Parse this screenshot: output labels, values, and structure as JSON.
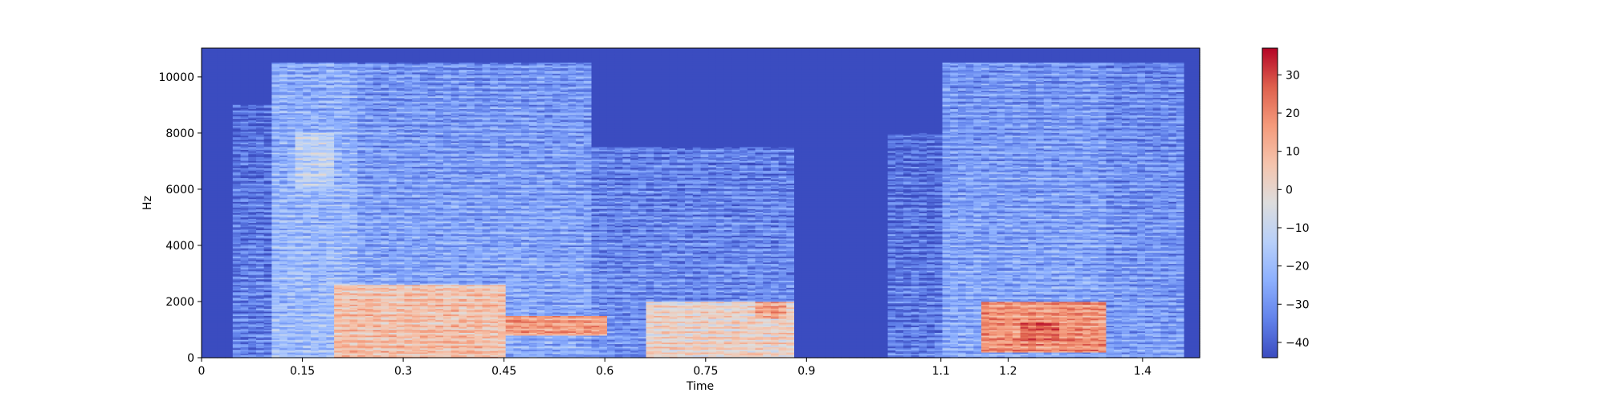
{
  "chart_data": {
    "type": "heatmap",
    "title": "",
    "xlabel": "Time",
    "ylabel": "Hz",
    "xlim": [
      0,
      1.485
    ],
    "ylim": [
      0,
      11025
    ],
    "x_ticks": [
      0,
      0.15,
      0.3,
      0.45,
      0.6,
      0.75,
      0.9,
      1.1,
      1.2,
      1.4
    ],
    "x_tick_labels": [
      "0",
      "0.15",
      "0.3",
      "0.45",
      "0.6",
      "0.75",
      "0.9",
      "1.1",
      "1.2",
      "1.4"
    ],
    "y_ticks": [
      0,
      2000,
      4000,
      6000,
      8000,
      10000
    ],
    "y_tick_labels": [
      "0",
      "2000",
      "4000",
      "6000",
      "8000",
      "10000"
    ],
    "colormap": "coolwarm",
    "colorbar": {
      "range": [
        -44,
        37
      ],
      "ticks": [
        30,
        20,
        10,
        0,
        -10,
        -20,
        -30,
        -40
      ],
      "tick_labels": [
        "30",
        "20",
        "10",
        "0",
        "−10",
        "−20",
        "−30",
        "−40"
      ]
    },
    "grid": false,
    "legend": "none",
    "n_time_frames": 128,
    "n_freq_bins": 220,
    "regions_db": [
      {
        "t": [
          0.0,
          0.045
        ],
        "f": [
          0,
          11025
        ],
        "db": -44
      },
      {
        "t": [
          0.045,
          0.11
        ],
        "f": [
          0,
          9000
        ],
        "db": -33
      },
      {
        "t": [
          0.11,
          0.23
        ],
        "f": [
          0,
          10500
        ],
        "db": -19
      },
      {
        "t": [
          0.14,
          0.2
        ],
        "f": [
          6000,
          8000
        ],
        "db": -8
      },
      {
        "t": [
          0.23,
          0.58
        ],
        "f": [
          0,
          10500
        ],
        "db": -24
      },
      {
        "t": [
          0.2,
          0.45
        ],
        "f": [
          0,
          2600
        ],
        "db": 8
      },
      {
        "t": [
          0.45,
          0.6
        ],
        "f": [
          800,
          1500
        ],
        "db": 16
      },
      {
        "t": [
          0.58,
          0.88
        ],
        "f": [
          0,
          7500
        ],
        "db": -30
      },
      {
        "t": [
          0.66,
          0.88
        ],
        "f": [
          0,
          2000
        ],
        "db": 2
      },
      {
        "t": [
          0.82,
          0.87
        ],
        "f": [
          1400,
          2000
        ],
        "db": 14
      },
      {
        "t": [
          0.92,
          1.02
        ],
        "f": [
          0,
          11025
        ],
        "db": -44
      },
      {
        "t": [
          1.02,
          1.1
        ],
        "f": [
          0,
          8000
        ],
        "db": -34
      },
      {
        "t": [
          1.1,
          1.35
        ],
        "f": [
          0,
          10500
        ],
        "db": -24
      },
      {
        "t": [
          1.16,
          1.34
        ],
        "f": [
          200,
          2000
        ],
        "db": 18
      },
      {
        "t": [
          1.22,
          1.28
        ],
        "f": [
          600,
          1300
        ],
        "db": 26
      },
      {
        "t": [
          1.35,
          1.46
        ],
        "f": [
          0,
          10500
        ],
        "db": -27
      },
      {
        "t": [
          1.46,
          1.485
        ],
        "f": [
          0,
          11025
        ],
        "db": -44
      }
    ]
  }
}
